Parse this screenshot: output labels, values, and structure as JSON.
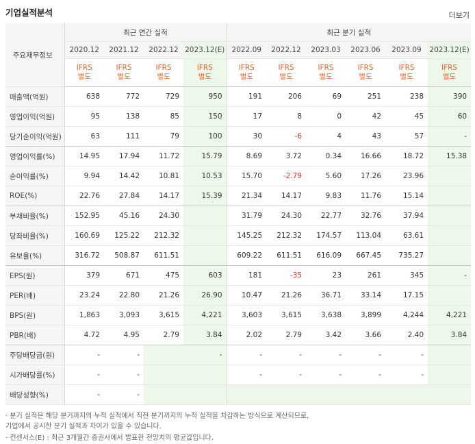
{
  "header": {
    "title": "기업실적분석",
    "more": "더보기"
  },
  "table": {
    "row_header": "주요재무정보",
    "groups": {
      "annual": "최근 연간 실적",
      "quarterly": "최근 분기 실적"
    },
    "annual_periods": [
      "2020.12",
      "2021.12",
      "2022.12",
      "2023.12(E)"
    ],
    "quarter_periods": [
      "2022.09",
      "2022.12",
      "2023.03",
      "2023.06",
      "2023.09",
      "2023.12(E)"
    ],
    "ifrs_top": "IFRS",
    "ifrs_bottom": "별도",
    "rows": [
      {
        "label": "매출액(억원)",
        "annual": [
          "638",
          "772",
          "729",
          "950"
        ],
        "quarter": [
          "191",
          "206",
          "69",
          "251",
          "238",
          "390"
        ]
      },
      {
        "label": "영업이익(억원)",
        "annual": [
          "95",
          "138",
          "85",
          "150"
        ],
        "quarter": [
          "17",
          "8",
          "0",
          "42",
          "45",
          "60"
        ]
      },
      {
        "label": "당기순이익(억원)",
        "annual": [
          "63",
          "111",
          "79",
          "100"
        ],
        "quarter": [
          "30",
          "-6",
          "4",
          "43",
          "57",
          "-"
        ]
      },
      {
        "label": "영업이익률(%)",
        "annual": [
          "14.95",
          "17.94",
          "11.72",
          "15.79"
        ],
        "quarter": [
          "8.69",
          "3.72",
          "0.34",
          "16.66",
          "18.72",
          "15.38"
        ]
      },
      {
        "label": "순이익률(%)",
        "annual": [
          "9.94",
          "14.42",
          "10.81",
          "10.53"
        ],
        "quarter": [
          "15.70",
          "-2.79",
          "5.60",
          "17.26",
          "23.96",
          ""
        ]
      },
      {
        "label": "ROE(%)",
        "annual": [
          "22.76",
          "27.84",
          "14.17",
          "15.39"
        ],
        "quarter": [
          "21.34",
          "14.17",
          "9.83",
          "11.76",
          "15.14",
          ""
        ]
      },
      {
        "label": "부채비율(%)",
        "annual": [
          "152.95",
          "45.16",
          "24.30",
          ""
        ],
        "quarter": [
          "31.79",
          "24.30",
          "22.77",
          "32.76",
          "37.94",
          ""
        ]
      },
      {
        "label": "당좌비율(%)",
        "annual": [
          "160.69",
          "125.22",
          "212.32",
          ""
        ],
        "quarter": [
          "145.25",
          "212.32",
          "174.57",
          "113.04",
          "63.61",
          ""
        ]
      },
      {
        "label": "유보율(%)",
        "annual": [
          "316.72",
          "508.87",
          "611.51",
          ""
        ],
        "quarter": [
          "609.22",
          "611.51",
          "616.09",
          "667.45",
          "735.27",
          ""
        ]
      },
      {
        "label": "EPS(원)",
        "annual": [
          "379",
          "671",
          "475",
          "603"
        ],
        "quarter": [
          "181",
          "-35",
          "23",
          "261",
          "345",
          "-"
        ]
      },
      {
        "label": "PER(배)",
        "annual": [
          "23.24",
          "22.80",
          "21.26",
          "26.90"
        ],
        "quarter": [
          "10.47",
          "21.26",
          "36.71",
          "33.14",
          "17.15",
          ""
        ]
      },
      {
        "label": "BPS(원)",
        "annual": [
          "1,863",
          "3,093",
          "3,615",
          "4,221"
        ],
        "quarter": [
          "3,603",
          "3,615",
          "3,638",
          "3,899",
          "4,244",
          "4,221"
        ]
      },
      {
        "label": "PBR(배)",
        "annual": [
          "4.72",
          "4.95",
          "2.79",
          "3.84"
        ],
        "quarter": [
          "2.02",
          "2.79",
          "3.42",
          "3.66",
          "2.40",
          "3.84"
        ]
      },
      {
        "label": "주당배당금(원)",
        "annual": [
          "-",
          "-",
          "",
          "-"
        ],
        "quarter": [
          "-",
          "-",
          "-",
          "-",
          "-",
          ""
        ]
      },
      {
        "label": "시가배당률(%)",
        "annual": [
          "-",
          "-",
          "",
          ""
        ],
        "quarter": [
          "-",
          "-",
          "-",
          "-",
          "-",
          ""
        ]
      },
      {
        "label": "배당성향(%)",
        "annual": [
          "-",
          "-",
          "",
          ""
        ],
        "quarter": [
          "",
          "",
          "",
          "",
          "",
          ""
        ]
      }
    ]
  },
  "notes": [
    "· 분기 실적은 해당 분기까지의 누적 실적에서 직전 분기까지의 누적 실적을 차감하는 방식으로 계산되므로,",
    "   기업에서 공시한 분기 실적과 차이가 있을 수 있습니다.",
    "· 컨센서스(E) : 최근 3개월간 증권사에서 발표한 전망치의 평균값입니다."
  ]
}
